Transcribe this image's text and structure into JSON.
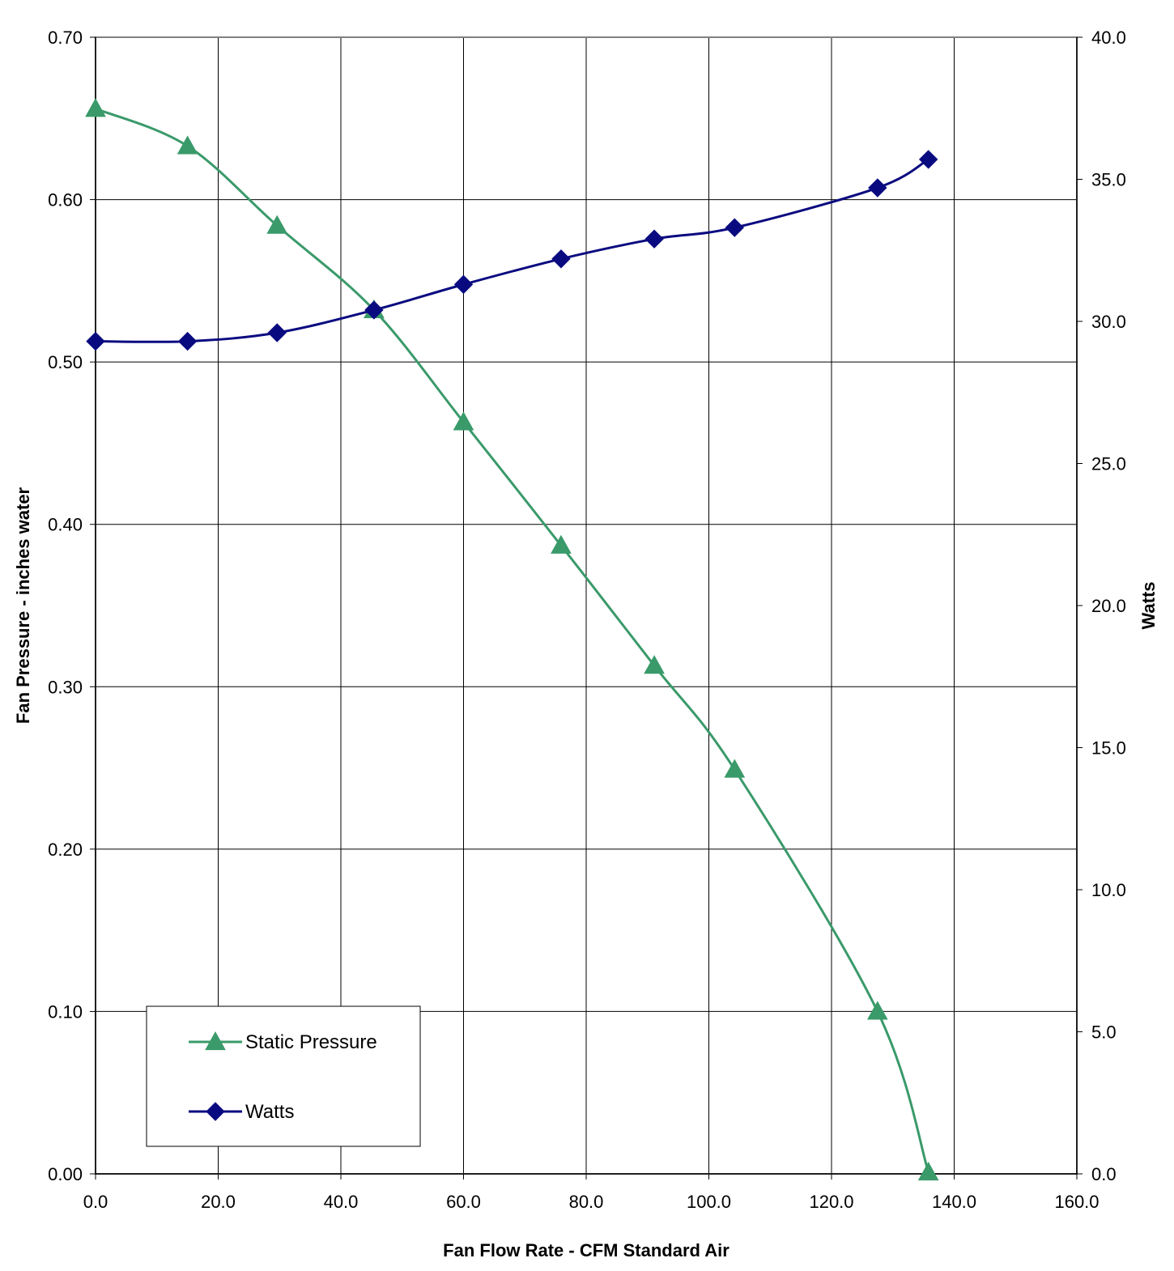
{
  "chart_data": {
    "type": "line",
    "title": "",
    "xlabel": "Fan Flow Rate - CFM Standard Air",
    "ylabel": "Fan Pressure - inches water",
    "y2label": "Watts",
    "xlim": [
      0,
      160
    ],
    "ylim": [
      0,
      0.7
    ],
    "y2lim": [
      0,
      40
    ],
    "x_ticks": [
      "0.0",
      "20.0",
      "40.0",
      "60.0",
      "80.0",
      "100.0",
      "120.0",
      "140.0",
      "160.0"
    ],
    "y_ticks": [
      "0.00",
      "0.10",
      "0.20",
      "0.30",
      "0.40",
      "0.50",
      "0.60",
      "0.70"
    ],
    "y2_ticks": [
      "0.0",
      "5.0",
      "10.0",
      "15.0",
      "20.0",
      "25.0",
      "30.0",
      "35.0",
      "40.0"
    ],
    "grid": true,
    "legend_position": "bottom-left",
    "series": [
      {
        "name": "Static Pressure",
        "axis": "left",
        "marker": "triangle",
        "color": "#3a9a6a",
        "x": [
          0.0,
          15.0,
          29.6,
          45.4,
          60.0,
          75.9,
          91.1,
          104.2,
          127.5,
          135.8
        ],
        "y": [
          0.656,
          0.633,
          0.584,
          0.532,
          0.463,
          0.387,
          0.313,
          0.249,
          0.1,
          0.001
        ]
      },
      {
        "name": "Watts",
        "axis": "right",
        "marker": "diamond",
        "color": "#0a0a80",
        "x": [
          0.0,
          15.0,
          29.6,
          45.4,
          60.0,
          75.9,
          91.1,
          104.2,
          127.5,
          135.8
        ],
        "y": [
          29.3,
          29.3,
          29.6,
          30.4,
          31.3,
          32.2,
          32.9,
          33.3,
          34.7,
          35.7
        ]
      }
    ]
  }
}
